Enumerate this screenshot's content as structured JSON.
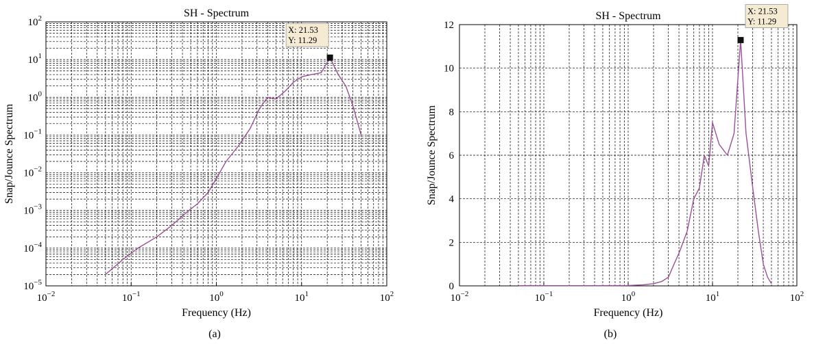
{
  "figure": {
    "panel_a_label": "(a)",
    "panel_b_label": "(b)"
  },
  "colors": {
    "series": "#9b4f96",
    "grid": "#000000",
    "datatip_bg": "#f5ead2",
    "marker": "#111111"
  },
  "chart_data": [
    {
      "type": "line",
      "title": "SH - Spectrum",
      "xlabel": "Frequency (Hz)",
      "ylabel": "Snap/Jounce Spectrum",
      "xscale": "log",
      "yscale": "log",
      "xlim": [
        0.01,
        100
      ],
      "ylim": [
        1e-05,
        100
      ],
      "grid": true,
      "x_ticks": [
        {
          "base": "10",
          "exp": "−2"
        },
        {
          "base": "10",
          "exp": "−1"
        },
        {
          "base": "10",
          "exp": "0"
        },
        {
          "base": "10",
          "exp": "1"
        },
        {
          "base": "10",
          "exp": "2"
        }
      ],
      "y_ticks": [
        {
          "base": "10",
          "exp": "−5"
        },
        {
          "base": "10",
          "exp": "−4"
        },
        {
          "base": "10",
          "exp": "−3"
        },
        {
          "base": "10",
          "exp": "−2"
        },
        {
          "base": "10",
          "exp": "−1"
        },
        {
          "base": "10",
          "exp": "0"
        },
        {
          "base": "10",
          "exp": "1"
        },
        {
          "base": "10",
          "exp": "2"
        }
      ],
      "series": [
        {
          "x": [
            0.05,
            0.08,
            0.12,
            0.2,
            0.3,
            0.45,
            0.6,
            0.8,
            1.0,
            1.3,
            1.8,
            2.5,
            3.2,
            4.0,
            5.0,
            6.5,
            8.0,
            10.0,
            13.0,
            17.0,
            21.53,
            27.0,
            33.0,
            40.0,
            50.0
          ],
          "y": [
            2e-05,
            5e-05,
            0.0001,
            0.0002,
            0.0004,
            0.0009,
            0.0015,
            0.003,
            0.007,
            0.02,
            0.05,
            0.15,
            0.5,
            1.0,
            0.9,
            1.5,
            2.5,
            3.5,
            4.0,
            4.5,
            11.29,
            4.0,
            2.0,
            0.6,
            0.1
          ]
        }
      ],
      "datatip": {
        "x_text": "X: 21.53",
        "y_text": "Y: 11.29",
        "x": 21.53,
        "y": 11.29
      }
    },
    {
      "type": "line",
      "title": "SH - Spectrum",
      "xlabel": "Frequency (Hz)",
      "ylabel": "Snap/Jounce Spectrum",
      "xscale": "log",
      "yscale": "linear",
      "xlim": [
        0.01,
        100
      ],
      "ylim": [
        0,
        12
      ],
      "grid": true,
      "x_ticks": [
        {
          "base": "10",
          "exp": "−2"
        },
        {
          "base": "10",
          "exp": "−1"
        },
        {
          "base": "10",
          "exp": "0"
        },
        {
          "base": "10",
          "exp": "1"
        },
        {
          "base": "10",
          "exp": "2"
        }
      ],
      "y_ticks": [
        "0",
        "2",
        "4",
        "6",
        "8",
        "10",
        "12"
      ],
      "series": [
        {
          "x": [
            0.05,
            0.1,
            0.5,
            1.0,
            1.5,
            2.0,
            2.5,
            3.0,
            3.5,
            4.0,
            5.0,
            6.0,
            7.0,
            8.0,
            9.0,
            10.0,
            12.0,
            15.0,
            18.0,
            21.53,
            25.0,
            30.0,
            35.0,
            40.0,
            45.0,
            50.0
          ],
          "y": [
            0.01,
            0.01,
            0.01,
            0.02,
            0.05,
            0.1,
            0.2,
            0.4,
            1.0,
            1.5,
            2.5,
            4.0,
            4.5,
            6.0,
            5.5,
            7.5,
            6.5,
            6.0,
            7.0,
            11.29,
            7.0,
            4.5,
            2.5,
            1.0,
            0.4,
            0.1
          ]
        }
      ],
      "datatip": {
        "x_text": "X: 21.53",
        "y_text": "Y: 11.29",
        "x": 21.53,
        "y": 11.29
      }
    }
  ]
}
